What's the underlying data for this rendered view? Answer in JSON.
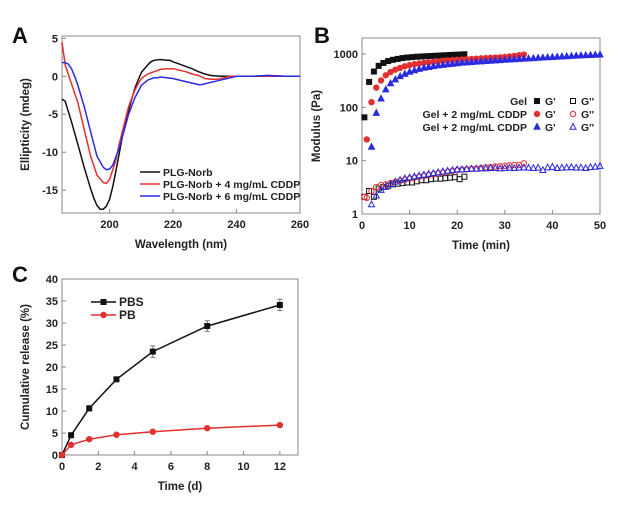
{
  "chart_data": [
    {
      "panel": "A",
      "type": "line",
      "xlabel": "Wavelength (nm)",
      "ylabel": "Ellipticity (mdeg)",
      "xlim": [
        185,
        260
      ],
      "ylim": [
        -18,
        5.3
      ],
      "xticks": [
        200,
        220,
        240,
        260
      ],
      "yticks": [
        5,
        0,
        -5,
        -10,
        -15
      ],
      "grid": false,
      "legend_position": "bottom-right",
      "series": [
        {
          "name": "PLG-Norb",
          "color": "#111111",
          "x": [
            185,
            186,
            188,
            190,
            192,
            194,
            195,
            196,
            197,
            198,
            199,
            200,
            201,
            202,
            204,
            206,
            207,
            208,
            210,
            212,
            213,
            214,
            216,
            218,
            219,
            220,
            222,
            224,
            226,
            228,
            230,
            232,
            235,
            240,
            245,
            250,
            255,
            260
          ],
          "y": [
            -3,
            -3.3,
            -6,
            -9,
            -12,
            -14.8,
            -16,
            -17,
            -17.5,
            -17.5,
            -17.1,
            -16.2,
            -14.5,
            -12.5,
            -8,
            -4.5,
            -3,
            -1.5,
            0.5,
            1.5,
            1.9,
            2.1,
            2.2,
            2.1,
            2.1,
            1.9,
            1.6,
            1.3,
            1,
            0.6,
            0.3,
            0.1,
            0,
            0,
            0,
            0.1,
            0,
            0
          ]
        },
        {
          "name": "PLG-Norb + 4 mg/mL CDDP",
          "color": "#e53030",
          "x": [
            185,
            186,
            188,
            190,
            192,
            194,
            196,
            198,
            199,
            200,
            202,
            203,
            204,
            206,
            208,
            209,
            210,
            212,
            214,
            216,
            218,
            220,
            222,
            224,
            226,
            228,
            230,
            232,
            234,
            236,
            238,
            240,
            245,
            250,
            255,
            260
          ],
          "y": [
            4.5,
            1.5,
            -1,
            -3.5,
            -7,
            -10.5,
            -13,
            -14,
            -14.1,
            -13.6,
            -11,
            -9,
            -7.3,
            -4,
            -1.8,
            -1,
            -0.3,
            0.3,
            0.6,
            0.9,
            1,
            1,
            0.8,
            0.6,
            0.3,
            0.1,
            -0.3,
            -0.4,
            -0.4,
            -0.2,
            0,
            0,
            0,
            0,
            0,
            0
          ]
        },
        {
          "name": "PLG-Norb + 6 mg/mL CDDP",
          "color": "#2a2ae0",
          "x": [
            185,
            186,
            187,
            188,
            189,
            190,
            192,
            194,
            196,
            198,
            199,
            200,
            201,
            203,
            205,
            206,
            208,
            209,
            210,
            212,
            214,
            215,
            216,
            218,
            220,
            222,
            224,
            226,
            228,
            229,
            230,
            232,
            234,
            236,
            238,
            240,
            245,
            250,
            255,
            260
          ],
          "y": [
            1.8,
            1.8,
            1.6,
            1,
            0,
            -1.2,
            -4,
            -7.3,
            -10.5,
            -12,
            -12.3,
            -12.2,
            -11.7,
            -9.5,
            -6.5,
            -5,
            -2.8,
            -2,
            -1.2,
            -0.5,
            -0.2,
            -0.2,
            -0.1,
            -0.2,
            -0.3,
            -0.5,
            -0.7,
            -0.9,
            -1.1,
            -1.1,
            -1,
            -0.8,
            -0.6,
            -0.4,
            -0.2,
            0,
            0,
            0.1,
            0,
            0
          ]
        }
      ]
    },
    {
      "panel": "B",
      "type": "scatter",
      "xlabel": "Time (min)",
      "ylabel": "Modulus (Pa)",
      "xlim": [
        0,
        50
      ],
      "ylim": [
        1,
        2000
      ],
      "yscale": "log",
      "xticks": [
        0,
        10,
        20,
        30,
        40,
        50
      ],
      "yticks": [
        1,
        10,
        100,
        1000
      ],
      "ytick_labels": [
        "1",
        "10",
        "100",
        "1000"
      ],
      "grid": false,
      "legend_position": "right",
      "legend_rows": [
        {
          "label": "Gel",
          "g1": "G'",
          "g2": "G''"
        },
        {
          "label": "Gel + 2 mg/mL CDDP",
          "g1": "G'",
          "g2": "G''"
        },
        {
          "label": "Gel + 2 mg/mL CDDP",
          "g1": "G'",
          "g2": "G''"
        }
      ],
      "series": [
        {
          "name": "Gel G'",
          "color": "#111111",
          "marker": "square-filled",
          "x": [
            0.5,
            1.5,
            2.5,
            3.5,
            4.5,
            5.5,
            6.5,
            7.5,
            8.5,
            9.5,
            10.5,
            11.5,
            12.5,
            13.5,
            14.5,
            15.5,
            16.5,
            17.5,
            18.5,
            19.5,
            20.5,
            21.5
          ],
          "y": [
            65,
            300,
            470,
            600,
            680,
            740,
            780,
            810,
            840,
            860,
            875,
            890,
            900,
            910,
            920,
            930,
            940,
            950,
            960,
            970,
            980,
            990
          ]
        },
        {
          "name": "Gel G''",
          "color": "#111111",
          "marker": "square-open",
          "x": [
            0.5,
            1.5,
            2.5,
            3.5,
            4.5,
            5.5,
            6.5,
            7.5,
            8.5,
            9.5,
            10.5,
            11.5,
            12.5,
            13.5,
            14.5,
            15.5,
            16.5,
            17.5,
            18.5,
            19.5,
            20.5,
            21.5
          ],
          "y": [
            2.1,
            2.7,
            2.1,
            3,
            3.2,
            3.4,
            3.6,
            3.7,
            3.8,
            3.9,
            3.9,
            4.1,
            4.3,
            4.3,
            4.5,
            4.6,
            4.6,
            4.7,
            4.8,
            4.9,
            4.5,
            5
          ]
        },
        {
          "name": "Gel + 2 mg/mL CDDP G'",
          "color": "#e53030",
          "marker": "circle-filled",
          "x": [
            1,
            2,
            3,
            4,
            5,
            6,
            7,
            8,
            9,
            10,
            11,
            12,
            13,
            14,
            15,
            16,
            17,
            18,
            19,
            20,
            21,
            22,
            23,
            24,
            25,
            26,
            27,
            28,
            29,
            30,
            31,
            32,
            33,
            34
          ],
          "y": [
            25,
            125,
            235,
            320,
            400,
            460,
            510,
            550,
            590,
            620,
            645,
            665,
            685,
            700,
            715,
            730,
            745,
            760,
            770,
            780,
            790,
            800,
            810,
            820,
            830,
            840,
            850,
            860,
            870,
            880,
            900,
            920,
            950,
            980
          ]
        },
        {
          "name": "Gel + 2 mg/mL CDDP G''",
          "color": "#e53030",
          "marker": "circle-open",
          "x": [
            0.5,
            1,
            2,
            3,
            4,
            5,
            6,
            7,
            8,
            9,
            10,
            11,
            12,
            13,
            14,
            15,
            16,
            17,
            18,
            19,
            20,
            21,
            22,
            23,
            24,
            25,
            26,
            27,
            28,
            29,
            30,
            31,
            32,
            33,
            34
          ],
          "y": [
            2.1,
            2,
            2.7,
            3.2,
            3.5,
            3.6,
            3.8,
            4,
            4.2,
            4.4,
            4.6,
            4.8,
            5,
            5.2,
            5.4,
            5.6,
            5.8,
            6,
            6.2,
            6.4,
            6.6,
            6.8,
            6.9,
            7,
            7.1,
            7.3,
            7.5,
            7.6,
            7.8,
            7.9,
            8,
            8.2,
            8.3,
            8.3,
            8.9
          ]
        },
        {
          "name": "Gel + 2 mg/mL CDDP G' (2)",
          "color": "#2a2ae0",
          "marker": "triangle-filled",
          "x": [
            2,
            3,
            4,
            5,
            6,
            7,
            8,
            9,
            10,
            11,
            12,
            13,
            14,
            15,
            16,
            17,
            18,
            19,
            20,
            21,
            22,
            23,
            24,
            25,
            26,
            27,
            28,
            29,
            30,
            31,
            32,
            33,
            34,
            35,
            36,
            37,
            38,
            39,
            40,
            41,
            42,
            43,
            44,
            45,
            46,
            47,
            48,
            49,
            50
          ],
          "y": [
            18,
            78,
            145,
            215,
            280,
            330,
            380,
            420,
            460,
            490,
            520,
            545,
            565,
            585,
            605,
            620,
            635,
            650,
            665,
            680,
            690,
            700,
            710,
            720,
            730,
            740,
            750,
            760,
            770,
            780,
            790,
            800,
            810,
            820,
            830,
            840,
            850,
            860,
            870,
            880,
            890,
            900,
            910,
            920,
            930,
            940,
            950,
            960,
            970
          ]
        },
        {
          "name": "Gel + 2 mg/mL CDDP G'' (2)",
          "color": "#2a2ae0",
          "marker": "triangle-open",
          "x": [
            2,
            3,
            4,
            5,
            6,
            7,
            8,
            9,
            10,
            11,
            12,
            13,
            14,
            15,
            16,
            17,
            18,
            19,
            20,
            21,
            22,
            23,
            24,
            25,
            26,
            27,
            28,
            29,
            30,
            31,
            32,
            33,
            34,
            35,
            36,
            37,
            38,
            39,
            40,
            41,
            42,
            43,
            44,
            45,
            46,
            47,
            48,
            49,
            50
          ],
          "y": [
            1.5,
            2.2,
            2.8,
            3.2,
            3.6,
            4,
            4.3,
            4.6,
            4.8,
            5,
            5.2,
            5.4,
            5.6,
            5.8,
            6,
            6.2,
            6.4,
            6.6,
            6.8,
            6.8,
            6.9,
            7,
            7,
            7.1,
            7.1,
            7.2,
            7.2,
            7.1,
            7.2,
            7.3,
            7.2,
            7.3,
            7.4,
            7.3,
            7.2,
            7.3,
            6.6,
            7.4,
            7.6,
            7.2,
            7.3,
            7.4,
            7.5,
            7.3,
            7.4,
            7.2,
            7.5,
            7.6,
            7.9
          ]
        }
      ]
    },
    {
      "panel": "C",
      "type": "line",
      "xlabel": "Time (d)",
      "ylabel": "Cumulative release (%)",
      "xlim": [
        0,
        13
      ],
      "ylim": [
        0,
        40
      ],
      "xticks": [
        0,
        2,
        4,
        6,
        8,
        10,
        12
      ],
      "yticks": [
        0,
        5,
        10,
        15,
        20,
        25,
        30,
        35,
        40
      ],
      "grid": false,
      "legend_position": "top-left",
      "series": [
        {
          "name": "PBS",
          "color": "#111111",
          "marker": "square",
          "x": [
            0,
            0.5,
            1.5,
            3,
            5,
            8,
            12
          ],
          "y": [
            0,
            4.5,
            10.6,
            17.2,
            23.5,
            29.3,
            34.1
          ],
          "error": [
            0,
            0.3,
            0.6,
            0.4,
            1.3,
            1.2,
            1.3
          ]
        },
        {
          "name": "PB",
          "color": "#e53030",
          "marker": "circle",
          "x": [
            0,
            0.5,
            1.5,
            3,
            5,
            8,
            12
          ],
          "y": [
            0,
            2.3,
            3.6,
            4.6,
            5.3,
            6.1,
            6.8
          ],
          "error": [
            0,
            0.2,
            0.2,
            0.2,
            0.2,
            0.2,
            0.2
          ]
        }
      ]
    }
  ]
}
